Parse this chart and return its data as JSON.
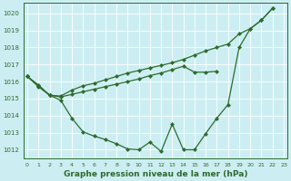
{
  "title": "Graphe pression niveau de la mer (hPa)",
  "bg_color": "#cceef2",
  "line_color": "#2d6a2d",
  "xlim": [
    -0.3,
    23.3
  ],
  "ylim": [
    1011.5,
    1020.6
  ],
  "yticks": [
    1012,
    1013,
    1014,
    1015,
    1016,
    1017,
    1018,
    1019,
    1020
  ],
  "xticks": [
    0,
    1,
    2,
    3,
    4,
    5,
    6,
    7,
    8,
    9,
    10,
    11,
    12,
    13,
    14,
    15,
    16,
    17,
    18,
    19,
    20,
    21,
    22,
    23
  ],
  "line1_x": [
    0,
    1,
    2,
    3,
    4,
    5,
    6,
    7,
    8,
    9,
    10,
    11,
    12,
    13,
    14,
    15,
    16,
    17,
    18,
    19,
    20,
    21,
    22
  ],
  "line1_y": [
    1016.3,
    1015.8,
    1015.2,
    1015.15,
    1015.5,
    1015.75,
    1015.9,
    1016.1,
    1016.3,
    1016.5,
    1016.65,
    1016.8,
    1016.95,
    1017.1,
    1017.3,
    1017.55,
    1017.8,
    1018.0,
    1018.2,
    1018.8,
    1019.1,
    1019.6,
    1020.3
  ],
  "line2_x": [
    0,
    1,
    2,
    3,
    4,
    5,
    6,
    7,
    8,
    9,
    10,
    11,
    12,
    13,
    14,
    15,
    16,
    17
  ],
  "line2_y": [
    1016.3,
    1015.75,
    1015.2,
    1015.1,
    1015.25,
    1015.4,
    1015.55,
    1015.7,
    1015.85,
    1016.0,
    1016.15,
    1016.35,
    1016.5,
    1016.7,
    1016.9,
    1016.55,
    1016.55,
    1016.6
  ],
  "line3_x": [
    0,
    1,
    2,
    3,
    4,
    5,
    6,
    7,
    8,
    9,
    10,
    11,
    12,
    13,
    14,
    15,
    16,
    17,
    18,
    19,
    20,
    21,
    22
  ],
  "line3_y": [
    1016.3,
    1015.7,
    1015.2,
    1014.9,
    1013.85,
    1013.05,
    1012.8,
    1012.6,
    1012.35,
    1012.05,
    1012.0,
    1012.45,
    1011.9,
    1013.5,
    1012.0,
    1012.0,
    1012.95,
    1013.85,
    1014.65,
    1018.0,
    1019.1,
    1019.6,
    1020.3
  ]
}
